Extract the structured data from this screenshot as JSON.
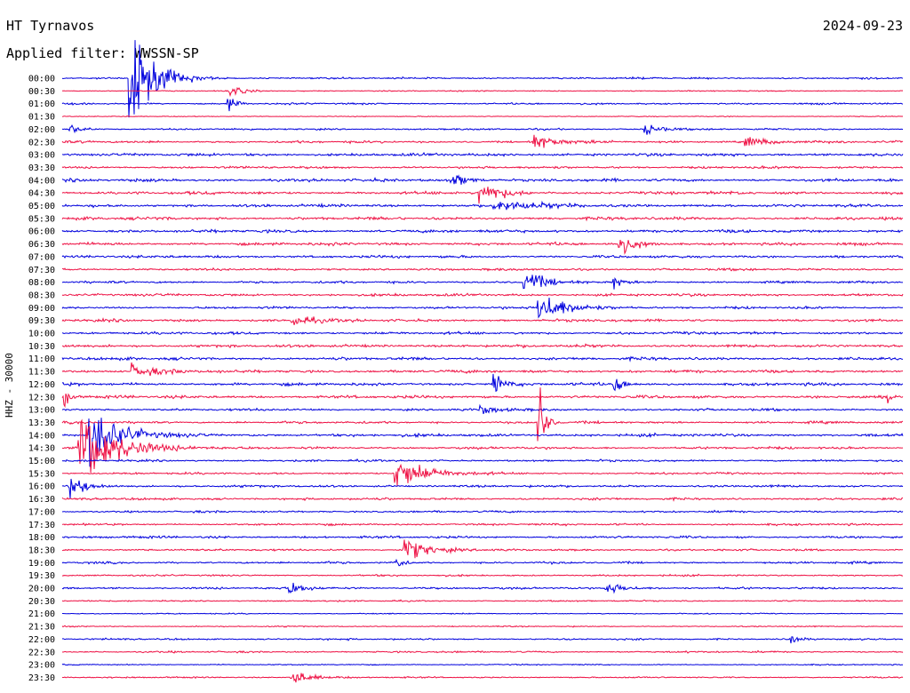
{
  "header": {
    "station": "HT Tyrnavos",
    "date": "2024-09-23",
    "filter": "Applied filter: WWSSN-SP"
  },
  "side_label": "HHZ - 30000",
  "colors": {
    "odd": "#0000dd",
    "even": "#ee1144"
  },
  "chart_data": {
    "type": "line",
    "title": "HT Tyrnavos",
    "subtitle": "Applied filter: WWSSN-SP",
    "ylabel": "HHZ - 30000",
    "row_labels": [
      "00:00",
      "00:30",
      "01:00",
      "01:30",
      "02:00",
      "02:30",
      "03:00",
      "03:30",
      "04:00",
      "04:30",
      "05:00",
      "05:30",
      "06:00",
      "06:30",
      "07:00",
      "07:30",
      "08:00",
      "08:30",
      "09:00",
      "09:30",
      "10:00",
      "10:30",
      "11:00",
      "11:30",
      "12:00",
      "12:30",
      "13:00",
      "13:30",
      "14:00",
      "14:30",
      "15:00",
      "15:30",
      "16:00",
      "16:30",
      "17:00",
      "17:30",
      "18:00",
      "18:30",
      "19:00",
      "19:30",
      "20:00",
      "20:30",
      "21:00",
      "21:30",
      "22:00",
      "22:30",
      "23:00",
      "23:30"
    ],
    "x_range_minutes": [
      0,
      30
    ],
    "noise": [
      0.6,
      0.4,
      0.6,
      0.3,
      0.6,
      0.8,
      1.0,
      0.8,
      1.0,
      1.0,
      1.0,
      1.0,
      1.0,
      1.0,
      0.9,
      0.8,
      0.8,
      0.9,
      0.8,
      0.9,
      0.9,
      1.0,
      1.0,
      1.0,
      1.0,
      1.0,
      0.8,
      0.8,
      1.0,
      0.8,
      0.7,
      0.7,
      0.8,
      0.8,
      0.7,
      0.7,
      0.8,
      0.7,
      0.7,
      0.6,
      0.7,
      0.5,
      0.4,
      0.4,
      0.6,
      0.6,
      0.4,
      0.5
    ],
    "events": [
      {
        "row": 0,
        "t": 2.4,
        "amp": 45,
        "dur": 1.2
      },
      {
        "row": 1,
        "t": 6.0,
        "amp": 5,
        "dur": 0.6
      },
      {
        "row": 2,
        "t": 5.9,
        "amp": 7,
        "dur": 0.4
      },
      {
        "row": 4,
        "t": 0.3,
        "amp": 5,
        "dur": 0.5
      },
      {
        "row": 4,
        "t": 20.8,
        "amp": 5,
        "dur": 0.8
      },
      {
        "row": 5,
        "t": 16.8,
        "amp": 6,
        "dur": 1.2
      },
      {
        "row": 5,
        "t": 24.4,
        "amp": 5,
        "dur": 1.0
      },
      {
        "row": 8,
        "t": 13.9,
        "amp": 6,
        "dur": 0.8
      },
      {
        "row": 9,
        "t": 14.9,
        "amp": 11,
        "dur": 1.0
      },
      {
        "row": 10,
        "t": 15.4,
        "amp": 5,
        "dur": 2.0
      },
      {
        "row": 13,
        "t": 19.9,
        "amp": 9,
        "dur": 0.8
      },
      {
        "row": 16,
        "t": 16.5,
        "amp": 10,
        "dur": 1.0
      },
      {
        "row": 16,
        "t": 19.7,
        "amp": 7,
        "dur": 0.3
      },
      {
        "row": 18,
        "t": 17.0,
        "amp": 14,
        "dur": 1.4
      },
      {
        "row": 19,
        "t": 8.2,
        "amp": 5,
        "dur": 1.0
      },
      {
        "row": 23,
        "t": 2.5,
        "amp": 6,
        "dur": 1.2
      },
      {
        "row": 24,
        "t": 15.4,
        "amp": 12,
        "dur": 0.4
      },
      {
        "row": 24,
        "t": 19.7,
        "amp": 10,
        "dur": 0.4
      },
      {
        "row": 25,
        "t": 0.1,
        "amp": 7,
        "dur": 0.3
      },
      {
        "row": 25,
        "t": 29.5,
        "amp": 7,
        "dur": 0.2
      },
      {
        "row": 26,
        "t": 14.9,
        "amp": 4,
        "dur": 1.0
      },
      {
        "row": 27,
        "t": 17.0,
        "amp": 38,
        "dur": 0.3
      },
      {
        "row": 28,
        "t": 1.0,
        "amp": 28,
        "dur": 1.4
      },
      {
        "row": 29,
        "t": 0.6,
        "amp": 36,
        "dur": 1.8
      },
      {
        "row": 31,
        "t": 11.9,
        "amp": 14,
        "dur": 1.6
      },
      {
        "row": 32,
        "t": 0.3,
        "amp": 10,
        "dur": 0.8
      },
      {
        "row": 37,
        "t": 12.2,
        "amp": 10,
        "dur": 1.2
      },
      {
        "row": 38,
        "t": 11.9,
        "amp": 8,
        "dur": 0.3
      },
      {
        "row": 40,
        "t": 8.1,
        "amp": 6,
        "dur": 0.8
      },
      {
        "row": 40,
        "t": 19.4,
        "amp": 5,
        "dur": 1.0
      },
      {
        "row": 44,
        "t": 26.0,
        "amp": 5,
        "dur": 0.4
      },
      {
        "row": 47,
        "t": 8.2,
        "amp": 8,
        "dur": 0.8
      }
    ]
  }
}
